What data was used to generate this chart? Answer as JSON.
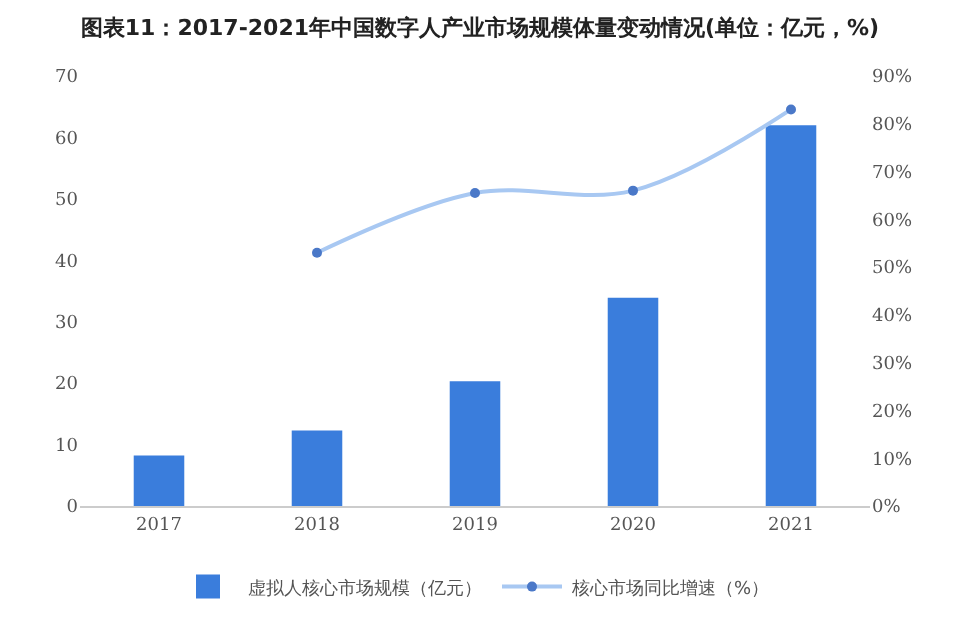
{
  "chart_data": {
    "type": "bar",
    "title": "图表11：2017-2021年中国数字人产业市场规模体量变动情况(单位：亿元，%)",
    "categories": [
      "2017",
      "2018",
      "2019",
      "2020",
      "2021"
    ],
    "series": [
      {
        "name": "虚拟人核心市场规模（亿元）",
        "color": "#3a7ddc",
        "values": [
          8.2,
          12.3,
          20.3,
          33.9,
          62.0
        ]
      },
      {
        "name": "核心市场同比增速（%）",
        "type": "line",
        "axis": "y2",
        "color": "#a8c8f2",
        "marker": "circle",
        "values": [
          null,
          53,
          65.5,
          66,
          83
        ]
      }
    ],
    "ylim": [
      0,
      70
    ],
    "yticks": [
      0,
      10,
      20,
      30,
      40,
      50,
      60,
      70
    ],
    "y2lim": [
      0,
      90
    ],
    "y2ticks": [
      {
        "value": 0,
        "label": "0%"
      },
      {
        "value": 10,
        "label": "10%"
      },
      {
        "value": 20,
        "label": "20%"
      },
      {
        "value": 30,
        "label": "30%"
      },
      {
        "value": 40,
        "label": "40%"
      },
      {
        "value": 50,
        "label": "50%"
      },
      {
        "value": 60,
        "label": "60%"
      },
      {
        "value": 70,
        "label": "70%"
      },
      {
        "value": 80,
        "label": "80%"
      },
      {
        "value": 90,
        "label": "90%"
      }
    ],
    "grid": false,
    "legend": "bottom"
  }
}
